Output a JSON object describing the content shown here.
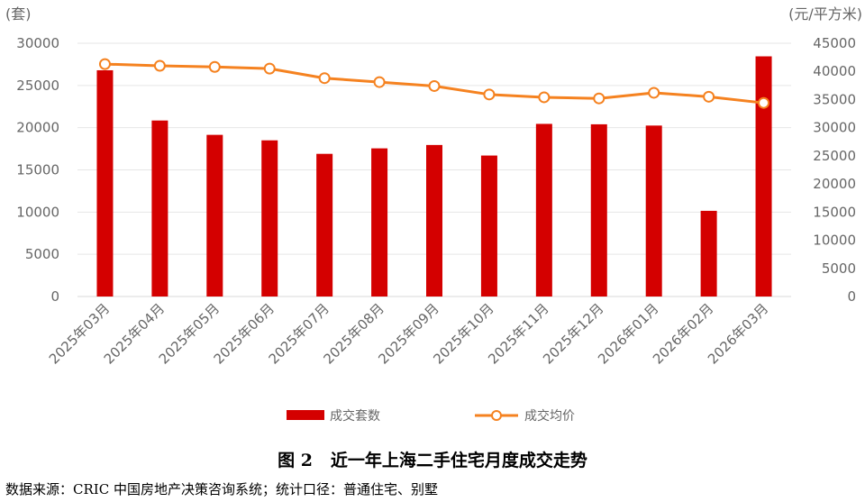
{
  "chart_data": {
    "type": "bar+line",
    "left_unit": "(套)",
    "right_unit": "(元/平方米)",
    "categories": [
      "2025年03月",
      "2025年04月",
      "2025年05月",
      "2025年06月",
      "2025年07月",
      "2025年08月",
      "2025年09月",
      "2025年10月",
      "2025年11月",
      "2025年12月",
      "2026年01月",
      "2026年02月",
      "2026年03月"
    ],
    "series": [
      {
        "name": "成交套数",
        "type": "bar",
        "axis": "left",
        "color": "#d40000",
        "values": [
          26800,
          20850,
          19150,
          18500,
          16900,
          17550,
          17950,
          16700,
          20450,
          20400,
          20250,
          10150,
          28450
        ]
      },
      {
        "name": "成交均价",
        "type": "line",
        "axis": "right",
        "color": "#f58220",
        "values": [
          41300,
          41000,
          40800,
          40500,
          38800,
          38100,
          37400,
          35900,
          35400,
          35200,
          36200,
          35500,
          34400
        ]
      }
    ],
    "y_left": {
      "min": 0,
      "max": 30000,
      "ticks": [
        0,
        5000,
        10000,
        15000,
        20000,
        25000,
        30000
      ]
    },
    "y_right": {
      "min": 0,
      "max": 45000,
      "ticks": [
        0,
        5000,
        10000,
        15000,
        20000,
        25000,
        30000,
        35000,
        40000,
        45000
      ]
    },
    "grid": true,
    "legend_position": "bottom"
  },
  "caption": "图 2   近一年上海二手住宅月度成交走势",
  "source": "数据来源：CRIC 中国房地产决策咨询系统；统计口径：普通住宅、别墅"
}
